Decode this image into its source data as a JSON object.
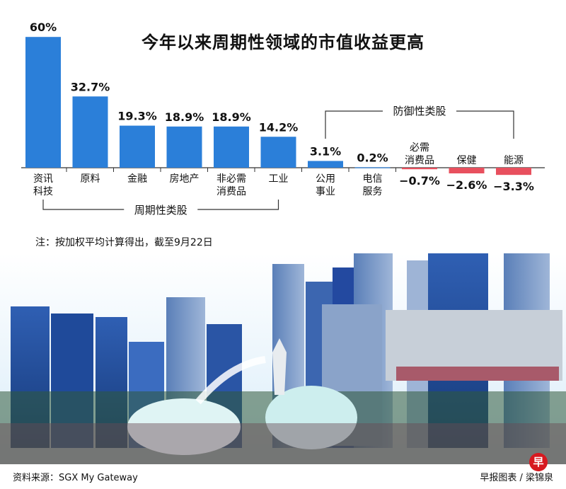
{
  "header": {
    "title": "今年以来周期性领域的市值收益更高"
  },
  "chart_data": {
    "type": "bar",
    "title": "今年以来周期性领域的市值收益更高",
    "categories": [
      [
        "资讯",
        "科技"
      ],
      [
        "原料"
      ],
      [
        "金融"
      ],
      [
        "房地产"
      ],
      [
        "非必需",
        "消费品"
      ],
      [
        "工业"
      ],
      [
        "公用",
        "事业"
      ],
      [
        "电信",
        "服务"
      ],
      [
        "必需",
        "消费品"
      ],
      [
        "保健"
      ],
      [
        "能源"
      ]
    ],
    "values": [
      60,
      32.7,
      19.3,
      18.9,
      18.9,
      14.2,
      3.1,
      0.2,
      -0.7,
      -2.6,
      -3.3
    ],
    "value_labels": [
      "60%",
      "32.7%",
      "19.3%",
      "18.9%",
      "18.9%",
      "14.2%",
      "3.1%",
      "0.2%",
      "−0.7%",
      "−2.6%",
      "−3.3%"
    ],
    "groups": [
      {
        "label": "周期性类股",
        "from": 0,
        "to": 5
      },
      {
        "label": "防御性类股",
        "from": 6,
        "to": 10
      }
    ],
    "colors": {
      "positive": "#2b7fd9",
      "negative": "#e8505e"
    },
    "ylim": [
      -4,
      60
    ]
  },
  "note": "注：按加权平均计算得出，截至9月22日",
  "footer": {
    "source": "资料来源：SGX My Gateway",
    "credit": "早报图表 / 梁锦泉"
  },
  "logo_text": "早"
}
